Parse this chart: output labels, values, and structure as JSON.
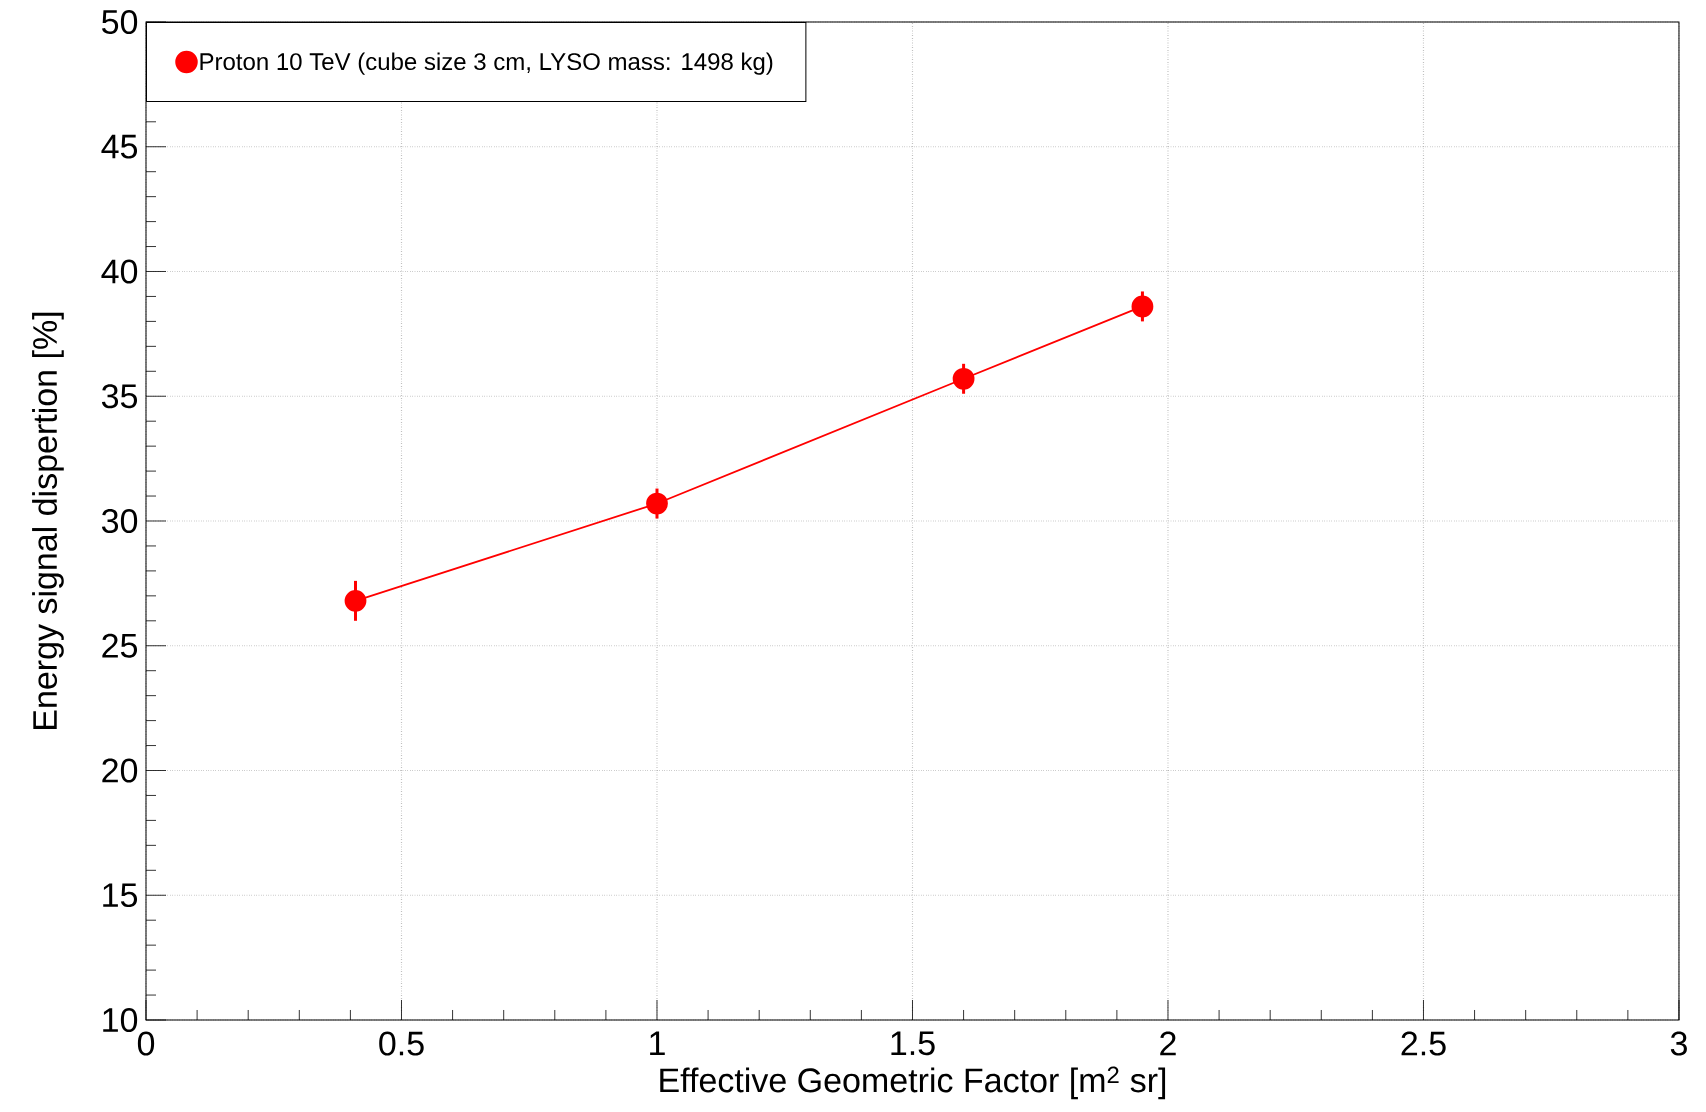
{
  "chart_data": {
    "type": "line",
    "xlabel": "Effective Geometric Factor [m$^{2}$ sr]",
    "ylabel": "Energy signal dispertion [%]",
    "x": [
      0.41,
      1.0,
      1.6,
      1.95
    ],
    "series": [
      {
        "name": "Proton 10 TeV (cube size 3 cm, LYSO mass: 1498 kg)",
        "color": "#ff0000",
        "values": [
          26.8,
          30.7,
          35.7,
          38.6
        ],
        "errors": [
          0.8,
          0.6,
          0.6,
          0.6
        ]
      }
    ],
    "xlim": [
      0,
      3
    ],
    "ylim": [
      10,
      50
    ],
    "xticks": [
      0,
      0.5,
      1,
      1.5,
      2,
      2.5,
      3
    ],
    "yticks": [
      10,
      15,
      20,
      25,
      30,
      35,
      40,
      45,
      50
    ],
    "grid": true,
    "legend": "top left",
    "marker": "circle",
    "line_style": "solid"
  }
}
